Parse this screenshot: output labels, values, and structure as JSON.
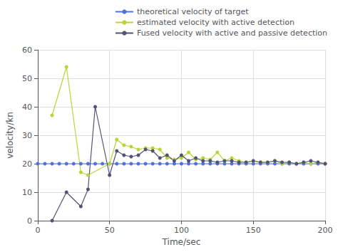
{
  "chart_data": {
    "type": "line",
    "xlabel": "Time/sec",
    "ylabel": "velocity/kn",
    "xlim": [
      0,
      200
    ],
    "ylim": [
      0,
      60
    ],
    "xticks": [
      0,
      50,
      100,
      150,
      200
    ],
    "yticks": [
      0,
      10,
      20,
      30,
      40,
      50,
      60
    ],
    "grid": true,
    "legend": "upper right",
    "marker": "circle",
    "series": [
      {
        "name": "theoretical velocity of target",
        "x": [
          0,
          5,
          10,
          15,
          20,
          25,
          30,
          35,
          40,
          45,
          50,
          55,
          60,
          65,
          70,
          75,
          80,
          85,
          90,
          95,
          100,
          105,
          110,
          115,
          120,
          125,
          130,
          135,
          140,
          145,
          150,
          155,
          160,
          165,
          170,
          175,
          180,
          185,
          190,
          195,
          200
        ],
        "values": [
          20,
          20,
          20,
          20,
          20,
          20,
          20,
          20,
          20,
          20,
          20,
          20,
          20,
          20,
          20,
          20,
          20,
          20,
          20,
          20,
          20,
          20,
          20,
          20,
          20,
          20,
          20,
          20,
          20,
          20,
          20,
          20,
          20,
          20,
          20,
          20,
          20,
          20,
          20,
          20,
          20
        ]
      },
      {
        "name": "estimated velocity with active detection",
        "x": [
          10,
          20,
          30,
          35,
          50,
          55,
          60,
          65,
          70,
          75,
          80,
          85,
          90,
          95,
          100,
          105,
          110,
          115,
          120,
          125,
          130,
          135,
          140,
          145,
          150,
          155,
          160,
          165,
          170,
          175,
          180,
          185,
          190,
          195,
          200
        ],
        "values": [
          37,
          54,
          17,
          16,
          20,
          28.5,
          26.5,
          26,
          25,
          25.5,
          25.5,
          25,
          22,
          21.5,
          22,
          24,
          21.5,
          22,
          21.5,
          24,
          21,
          22,
          21,
          20.5,
          21,
          20.5,
          20.5,
          21,
          20,
          20.5,
          20,
          20.5,
          20,
          20.5,
          20
        ]
      },
      {
        "name": "Fused velocity with active and passive detection",
        "x": [
          10,
          20,
          30,
          35,
          40,
          50,
          55,
          60,
          65,
          70,
          75,
          80,
          85,
          90,
          95,
          100,
          105,
          110,
          115,
          120,
          125,
          130,
          135,
          140,
          145,
          150,
          155,
          160,
          165,
          170,
          175,
          180,
          185,
          190,
          195,
          200
        ],
        "values": [
          0,
          10,
          5,
          11,
          40,
          16,
          24.5,
          23,
          22.5,
          23,
          25,
          24.5,
          22,
          23,
          21,
          23,
          21,
          22,
          21,
          21,
          20.5,
          21,
          21,
          20.5,
          20.5,
          21,
          20.5,
          20.5,
          21,
          20.5,
          20.5,
          20,
          20.5,
          21,
          20.5,
          20
        ]
      }
    ]
  }
}
